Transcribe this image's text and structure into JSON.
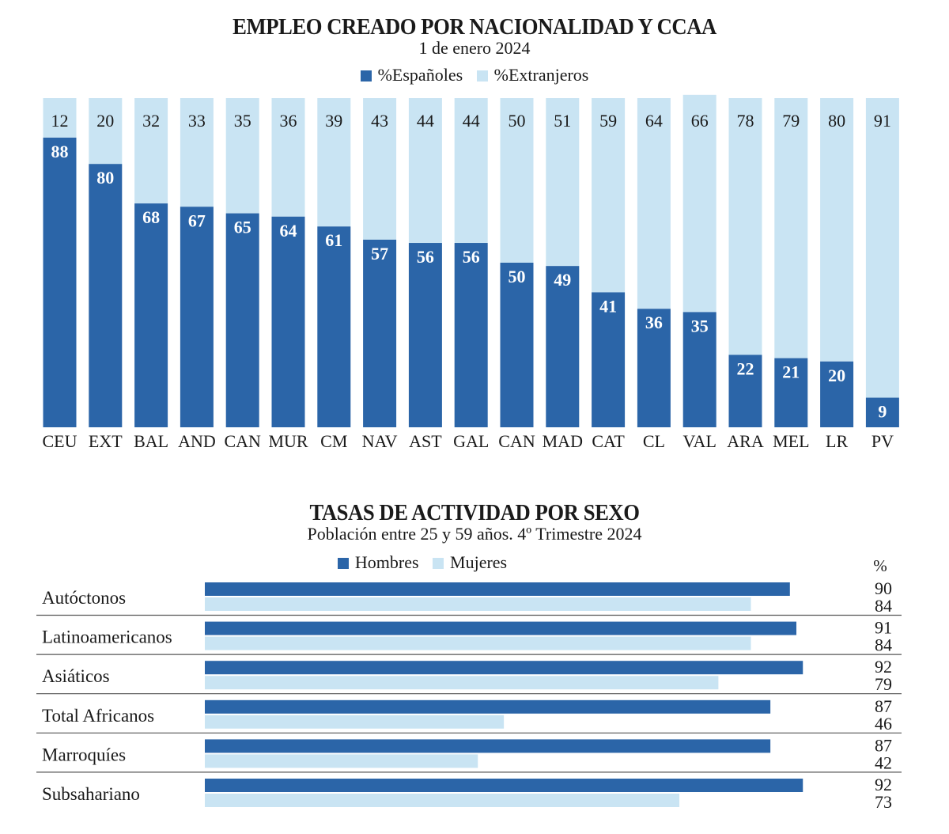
{
  "colors": {
    "dark": "#2b65a8",
    "light": "#c9e4f3",
    "divider": "#555555"
  },
  "chart_data": [
    {
      "type": "bar",
      "stacked": true,
      "orientation": "vertical",
      "title": "EMPLEO CREADO POR NACIONALIDAD Y CCAA",
      "subtitle": "1 de enero 2024",
      "legend": [
        "%Españoles",
        "%Extranjeros"
      ],
      "categories": [
        "CEU",
        "EXT",
        "BAL",
        "AND",
        "CAN",
        "MUR",
        "CM",
        "NAV",
        "AST",
        "GAL",
        "CAN",
        "MAD",
        "CAT",
        "CL",
        "VAL",
        "ARA",
        "MEL",
        "LR",
        "PV"
      ],
      "series": [
        {
          "name": "%Españoles",
          "values": [
            88,
            80,
            68,
            67,
            65,
            64,
            61,
            57,
            56,
            56,
            50,
            49,
            41,
            36,
            35,
            22,
            21,
            20,
            9
          ]
        },
        {
          "name": "%Extranjeros",
          "values": [
            12,
            20,
            32,
            33,
            35,
            36,
            39,
            43,
            44,
            44,
            50,
            51,
            59,
            64,
            66,
            78,
            79,
            80,
            91
          ]
        }
      ],
      "ylim": [
        0,
        100
      ]
    },
    {
      "type": "bar",
      "orientation": "horizontal",
      "title": "TASAS DE ACTIVIDAD POR SEXO",
      "subtitle": "Población entre 25 y 59 años. 4º Trimestre 2024",
      "legend": [
        "Hombres",
        "Mujeres"
      ],
      "unit": "%",
      "categories": [
        "Autóctonos",
        "Latinoamericanos",
        "Asiáticos",
        "Total Africanos",
        "Marroquíes",
        "Subsahariano"
      ],
      "series": [
        {
          "name": "Hombres",
          "values": [
            90,
            91,
            92,
            87,
            87,
            92
          ]
        },
        {
          "name": "Mujeres",
          "values": [
            84,
            84,
            79,
            46,
            42,
            73
          ]
        }
      ]
    }
  ]
}
